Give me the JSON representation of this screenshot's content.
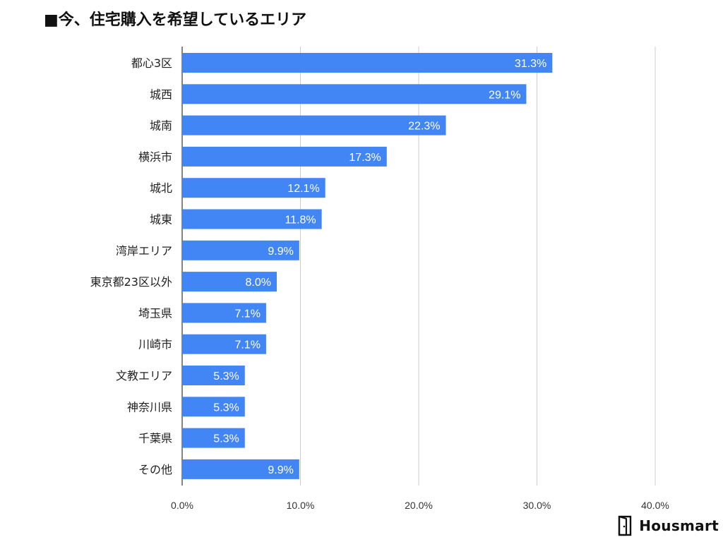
{
  "chart_data": {
    "type": "bar",
    "orientation": "horizontal",
    "title": "■今、住宅購入を希望しているエリア",
    "categories": [
      "都心3区",
      "城西",
      "城南",
      "横浜市",
      "城北",
      "城東",
      "湾岸エリア",
      "東京都23区以外",
      "埼玉県",
      "川崎市",
      "文教エリア",
      "神奈川県",
      "千葉県",
      "その他"
    ],
    "values": [
      31.3,
      29.1,
      22.3,
      17.3,
      12.1,
      11.8,
      9.9,
      8.0,
      7.1,
      7.1,
      5.3,
      5.3,
      5.3,
      9.9
    ],
    "data_labels": [
      "31.3%",
      "29.1%",
      "22.3%",
      "17.3%",
      "12.1%",
      "11.8%",
      "9.9%",
      "8.0%",
      "7.1%",
      "7.1%",
      "5.3%",
      "5.3%",
      "5.3%",
      "9.9%"
    ],
    "xlim": [
      0,
      40
    ],
    "xticks": [
      0,
      10,
      20,
      30,
      40
    ],
    "xtick_labels": [
      "0.0%",
      "10.0%",
      "20.0%",
      "30.0%",
      "40.0%"
    ],
    "xlabel": "",
    "ylabel": "",
    "grid": true,
    "bar_color": "#4285f4",
    "grid_color": "#cccccc"
  },
  "brand": {
    "name": "Housmart",
    "icon": "door-icon"
  }
}
